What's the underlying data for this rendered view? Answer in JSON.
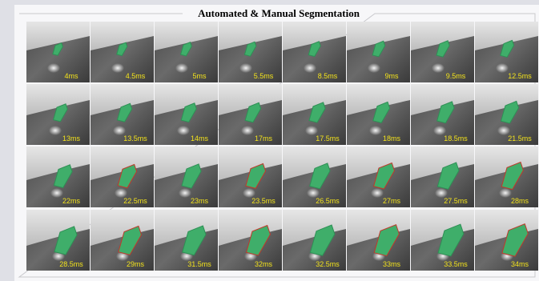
{
  "figure": {
    "title": "Automated & Manual Segmentation",
    "frames": [
      [
        "4ms",
        "4.5ms",
        "5ms",
        "5.5ms",
        "8.5ms",
        "9ms",
        "9.5ms",
        "12.5ms"
      ],
      [
        "13ms",
        "13.5ms",
        "14ms",
        "17ms",
        "17.5ms",
        "18ms",
        "18.5ms",
        "21.5ms"
      ],
      [
        "22ms",
        "22.5ms",
        "23ms",
        "23.5ms",
        "26.5ms",
        "27ms",
        "27.5ms",
        "28ms"
      ],
      [
        "28.5ms",
        "29ms",
        "31.5ms",
        "32ms",
        "32.5ms",
        "33ms",
        "33.5ms",
        "34ms"
      ]
    ]
  }
}
